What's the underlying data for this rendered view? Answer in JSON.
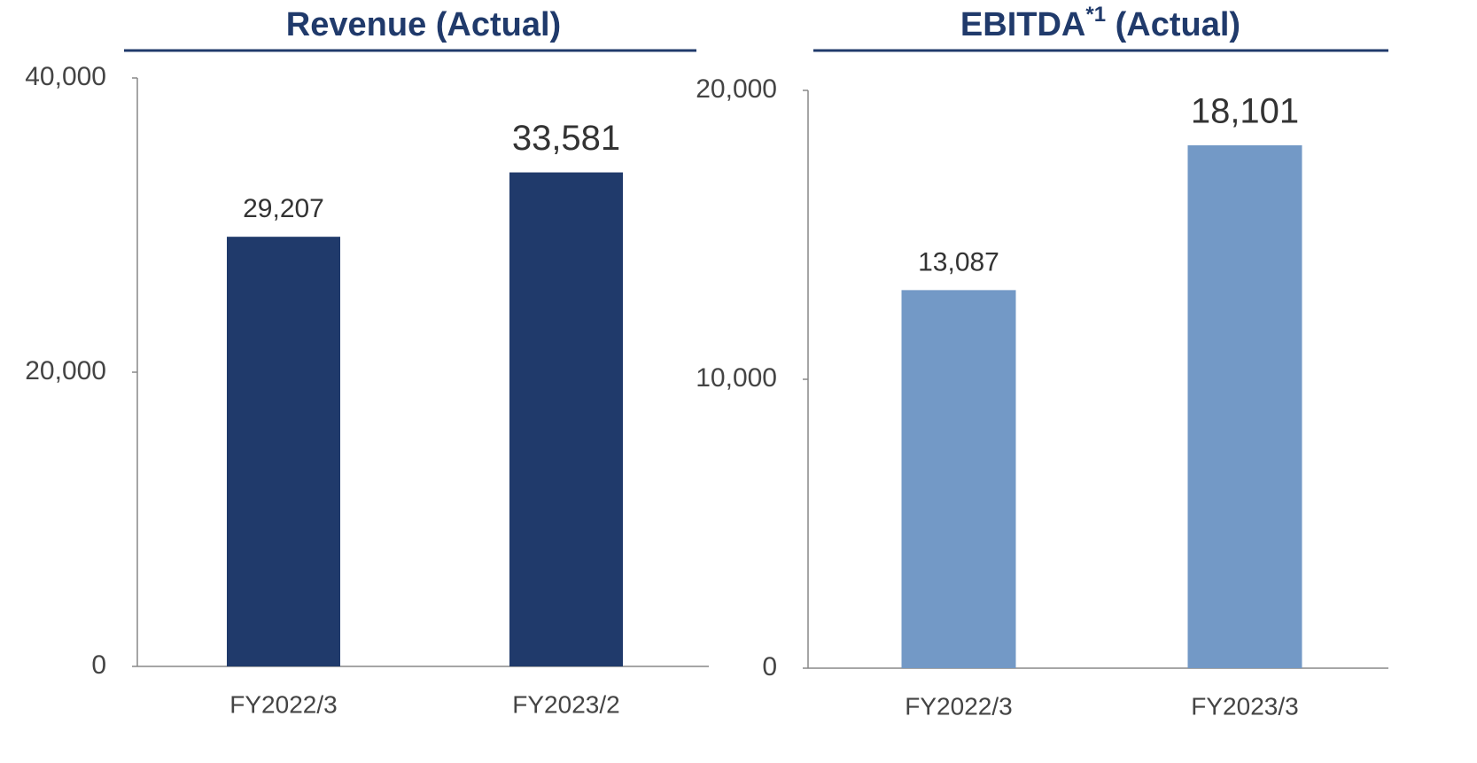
{
  "chart_data": [
    {
      "type": "bar",
      "title": "Revenue (Actual)",
      "categories": [
        "FY2022/3",
        "FY2023/2"
      ],
      "values": [
        29207,
        33581
      ],
      "value_labels": [
        "29,207",
        "33,581"
      ],
      "color": "#203a6b",
      "ylim": [
        0,
        40000
      ],
      "yticks": [
        0,
        {
          "value": 20000,
          "label": "20,000"
        },
        {
          "value": 40000,
          "label": "40,000"
        }
      ]
    },
    {
      "type": "bar",
      "title": "EBITDA",
      "title_superscript": "*1",
      "title_suffix": " (Actual)",
      "categories": [
        "FY2022/3",
        "FY2023/3"
      ],
      "values": [
        13087,
        18101
      ],
      "value_labels": [
        "13,087",
        "18,101"
      ],
      "color": "#7399c6",
      "ylim": [
        0,
        20000
      ],
      "yticks": [
        0,
        {
          "value": 10000,
          "label": "10,000"
        },
        {
          "value": 20000,
          "label": "20,000"
        }
      ]
    }
  ]
}
